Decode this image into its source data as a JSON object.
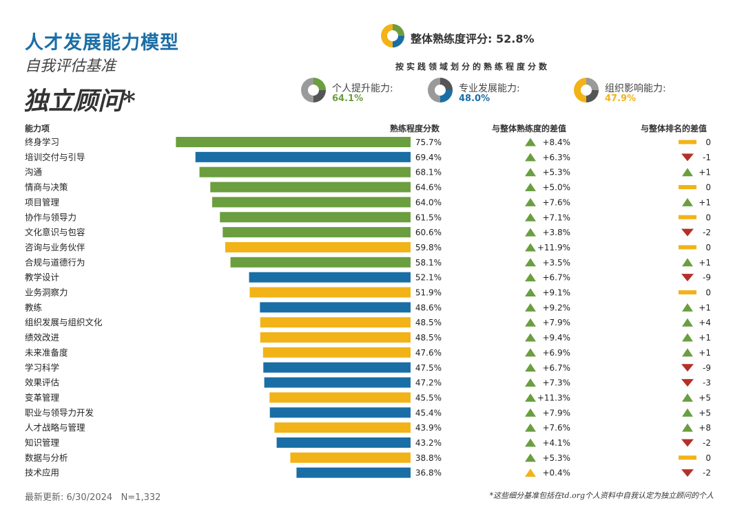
{
  "header": {
    "title": "人才发展能力模型",
    "subtitle": "自我评估基准",
    "role": "独立顾问*"
  },
  "overall": {
    "label": "整体熟练度评分:",
    "value": "52.8%"
  },
  "domains": {
    "title": "按实践领域划分的熟练程度分数",
    "items": [
      {
        "label": "个人提升能力:",
        "value": "64.1%",
        "color": "#6a9e3f"
      },
      {
        "label": "专业发展能力:",
        "value": "48.0%",
        "color": "#1a6ea6"
      },
      {
        "label": "组织影响能力:",
        "value": "47.9%",
        "color": "#f2b318"
      }
    ]
  },
  "columns": {
    "capability": "能力项",
    "score": "熟练程度分数",
    "diff": "与整体熟练度的差值",
    "rank": "与整体排名的差值"
  },
  "colors": {
    "personal": "#6a9e3f",
    "professional": "#1a6ea6",
    "organizational": "#f2b318",
    "up": "#6a9e3f",
    "down": "#b5302a",
    "neutral": "#f2b318"
  },
  "chart_data": {
    "type": "bar",
    "orientation": "horizontal",
    "xlim": [
      0,
      100
    ],
    "rows": [
      {
        "name": "终身学习",
        "value": 75.7,
        "value_label": "75.7%",
        "domain": "personal",
        "diff": "+8.4%",
        "diff_dir": "up",
        "rank": "0",
        "rank_dir": "neutral"
      },
      {
        "name": "培训交付与引导",
        "value": 69.4,
        "value_label": "69.4%",
        "domain": "professional",
        "diff": "+6.3%",
        "diff_dir": "up",
        "rank": "-1",
        "rank_dir": "down"
      },
      {
        "name": "沟通",
        "value": 68.1,
        "value_label": "68.1%",
        "domain": "personal",
        "diff": "+5.3%",
        "diff_dir": "up",
        "rank": "+1",
        "rank_dir": "up"
      },
      {
        "name": "情商与决策",
        "value": 64.6,
        "value_label": "64.6%",
        "domain": "personal",
        "diff": "+5.0%",
        "diff_dir": "up",
        "rank": "0",
        "rank_dir": "neutral"
      },
      {
        "name": "项目管理",
        "value": 64.0,
        "value_label": "64.0%",
        "domain": "personal",
        "diff": "+7.6%",
        "diff_dir": "up",
        "rank": "+1",
        "rank_dir": "up"
      },
      {
        "name": "协作与领导力",
        "value": 61.5,
        "value_label": "61.5%",
        "domain": "personal",
        "diff": "+7.1%",
        "diff_dir": "up",
        "rank": "0",
        "rank_dir": "neutral"
      },
      {
        "name": "文化意识与包容",
        "value": 60.6,
        "value_label": "60.6%",
        "domain": "personal",
        "diff": "+3.8%",
        "diff_dir": "up",
        "rank": "-2",
        "rank_dir": "down"
      },
      {
        "name": "咨询与业务伙伴",
        "value": 59.8,
        "value_label": "59.8%",
        "domain": "organizational",
        "diff": "+11.9%",
        "diff_dir": "up",
        "rank": "0",
        "rank_dir": "neutral"
      },
      {
        "name": "合规与道德行为",
        "value": 58.1,
        "value_label": "58.1%",
        "domain": "personal",
        "diff": "+3.5%",
        "diff_dir": "up",
        "rank": "+1",
        "rank_dir": "up"
      },
      {
        "name": "教学设计",
        "value": 52.1,
        "value_label": "52.1%",
        "domain": "professional",
        "diff": "+6.7%",
        "diff_dir": "up",
        "rank": "-9",
        "rank_dir": "down"
      },
      {
        "name": "业务洞察力",
        "value": 51.9,
        "value_label": "51.9%",
        "domain": "organizational",
        "diff": "+9.1%",
        "diff_dir": "up",
        "rank": "0",
        "rank_dir": "neutral"
      },
      {
        "name": "教练",
        "value": 48.6,
        "value_label": "48.6%",
        "domain": "professional",
        "diff": "+9.2%",
        "diff_dir": "up",
        "rank": "+1",
        "rank_dir": "up"
      },
      {
        "name": "组织发展与组织文化",
        "value": 48.5,
        "value_label": "48.5%",
        "domain": "organizational",
        "diff": "+7.9%",
        "diff_dir": "up",
        "rank": "+4",
        "rank_dir": "up"
      },
      {
        "name": "绩效改进",
        "value": 48.5,
        "value_label": "48.5%",
        "domain": "organizational",
        "diff": "+9.4%",
        "diff_dir": "up",
        "rank": "+1",
        "rank_dir": "up"
      },
      {
        "name": "未来准备度",
        "value": 47.6,
        "value_label": "47.6%",
        "domain": "organizational",
        "diff": "+6.9%",
        "diff_dir": "up",
        "rank": "+1",
        "rank_dir": "up"
      },
      {
        "name": "学习科学",
        "value": 47.5,
        "value_label": "47.5%",
        "domain": "professional",
        "diff": "+6.7%",
        "diff_dir": "up",
        "rank": "-9",
        "rank_dir": "down"
      },
      {
        "name": "效果评估",
        "value": 47.2,
        "value_label": "47.2%",
        "domain": "professional",
        "diff": "+7.3%",
        "diff_dir": "up",
        "rank": "-3",
        "rank_dir": "down"
      },
      {
        "name": "变革管理",
        "value": 45.5,
        "value_label": "45.5%",
        "domain": "organizational",
        "diff": "+11.3%",
        "diff_dir": "up",
        "rank": "+5",
        "rank_dir": "up"
      },
      {
        "name": "职业与领导力开发",
        "value": 45.4,
        "value_label": "45.4%",
        "domain": "professional",
        "diff": "+7.9%",
        "diff_dir": "up",
        "rank": "+5",
        "rank_dir": "up"
      },
      {
        "name": "人才战略与管理",
        "value": 43.9,
        "value_label": "43.9%",
        "domain": "organizational",
        "diff": "+7.6%",
        "diff_dir": "up",
        "rank": "+8",
        "rank_dir": "up"
      },
      {
        "name": "知识管理",
        "value": 43.2,
        "value_label": "43.2%",
        "domain": "professional",
        "diff": "+4.1%",
        "diff_dir": "up",
        "rank": "-2",
        "rank_dir": "down"
      },
      {
        "name": "数据与分析",
        "value": 38.8,
        "value_label": "38.8%",
        "domain": "organizational",
        "diff": "+5.3%",
        "diff_dir": "up",
        "rank": "0",
        "rank_dir": "neutral"
      },
      {
        "name": "技术应用",
        "value": 36.8,
        "value_label": "36.8%",
        "domain": "professional",
        "diff": "+0.4%",
        "diff_dir": "neutral",
        "rank": "-2",
        "rank_dir": "down"
      }
    ]
  },
  "footer": {
    "updated": "最新更新: 6/30/2024   N=1,332",
    "note": "*这些细分基准包括在td.org个人资料中自我认定为独立顾问的个人"
  }
}
